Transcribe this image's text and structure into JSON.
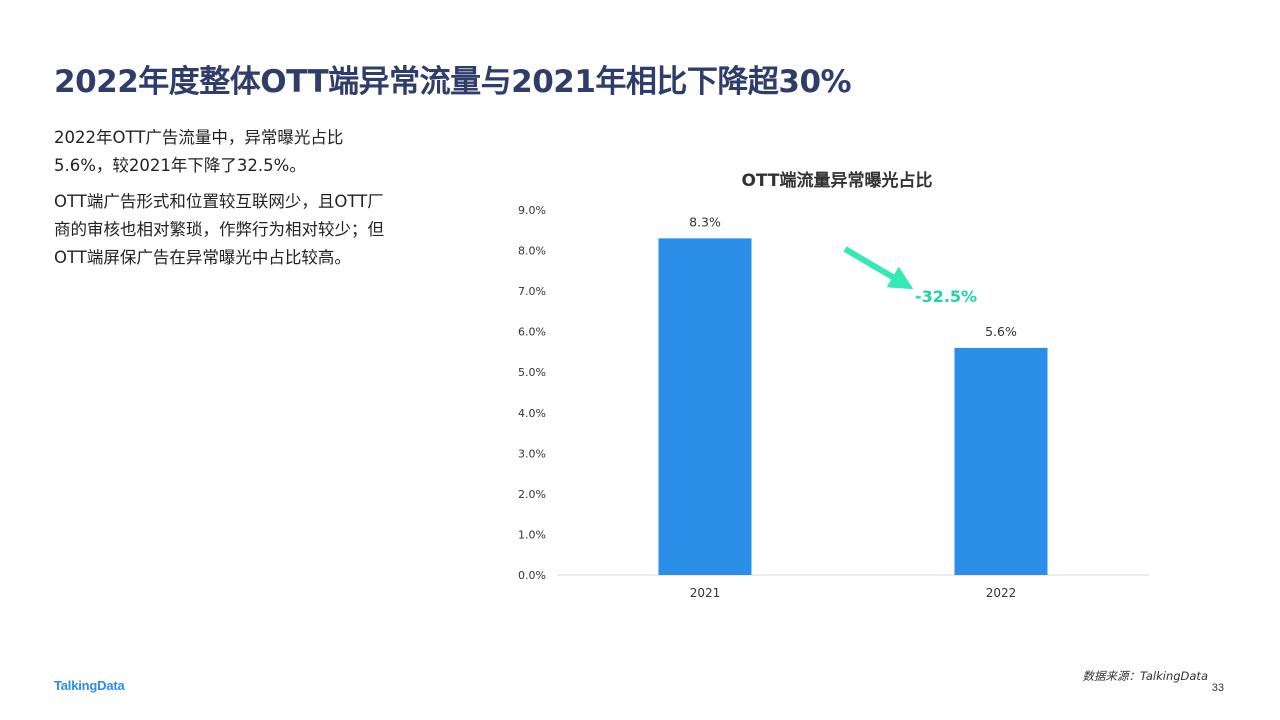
{
  "page": {
    "title": "2022年度整体OTT端异常流量与2021年相比下降超30%",
    "paragraphs": [
      "2022年OTT广告流量中，异常曝光占比5.6%，较2021年下降了32.5%。",
      "OTT端广告形式和位置较互联网少，且OTT厂商的审核也相对繁琐，作弊行为相对较少；但OTT端屏保广告在异常曝光中占比较高。"
    ],
    "brand": "TalkingData",
    "source": "数据来源：TalkingData",
    "page_number": "33"
  },
  "chart_data": {
    "type": "bar",
    "title": "OTT端流量异常曝光占比",
    "categories": [
      "2021",
      "2022"
    ],
    "values": [
      8.3,
      5.6
    ],
    "data_labels": [
      "8.3%",
      "5.6%"
    ],
    "y_ticks": [
      "0.0%",
      "1.0%",
      "2.0%",
      "3.0%",
      "4.0%",
      "5.0%",
      "6.0%",
      "7.0%",
      "8.0%",
      "9.0%"
    ],
    "ylim": [
      0,
      9
    ],
    "grid": false,
    "bar_color": "#2a8de8",
    "annotation": {
      "text": "-32.5%",
      "color": "#22d3a5"
    }
  }
}
